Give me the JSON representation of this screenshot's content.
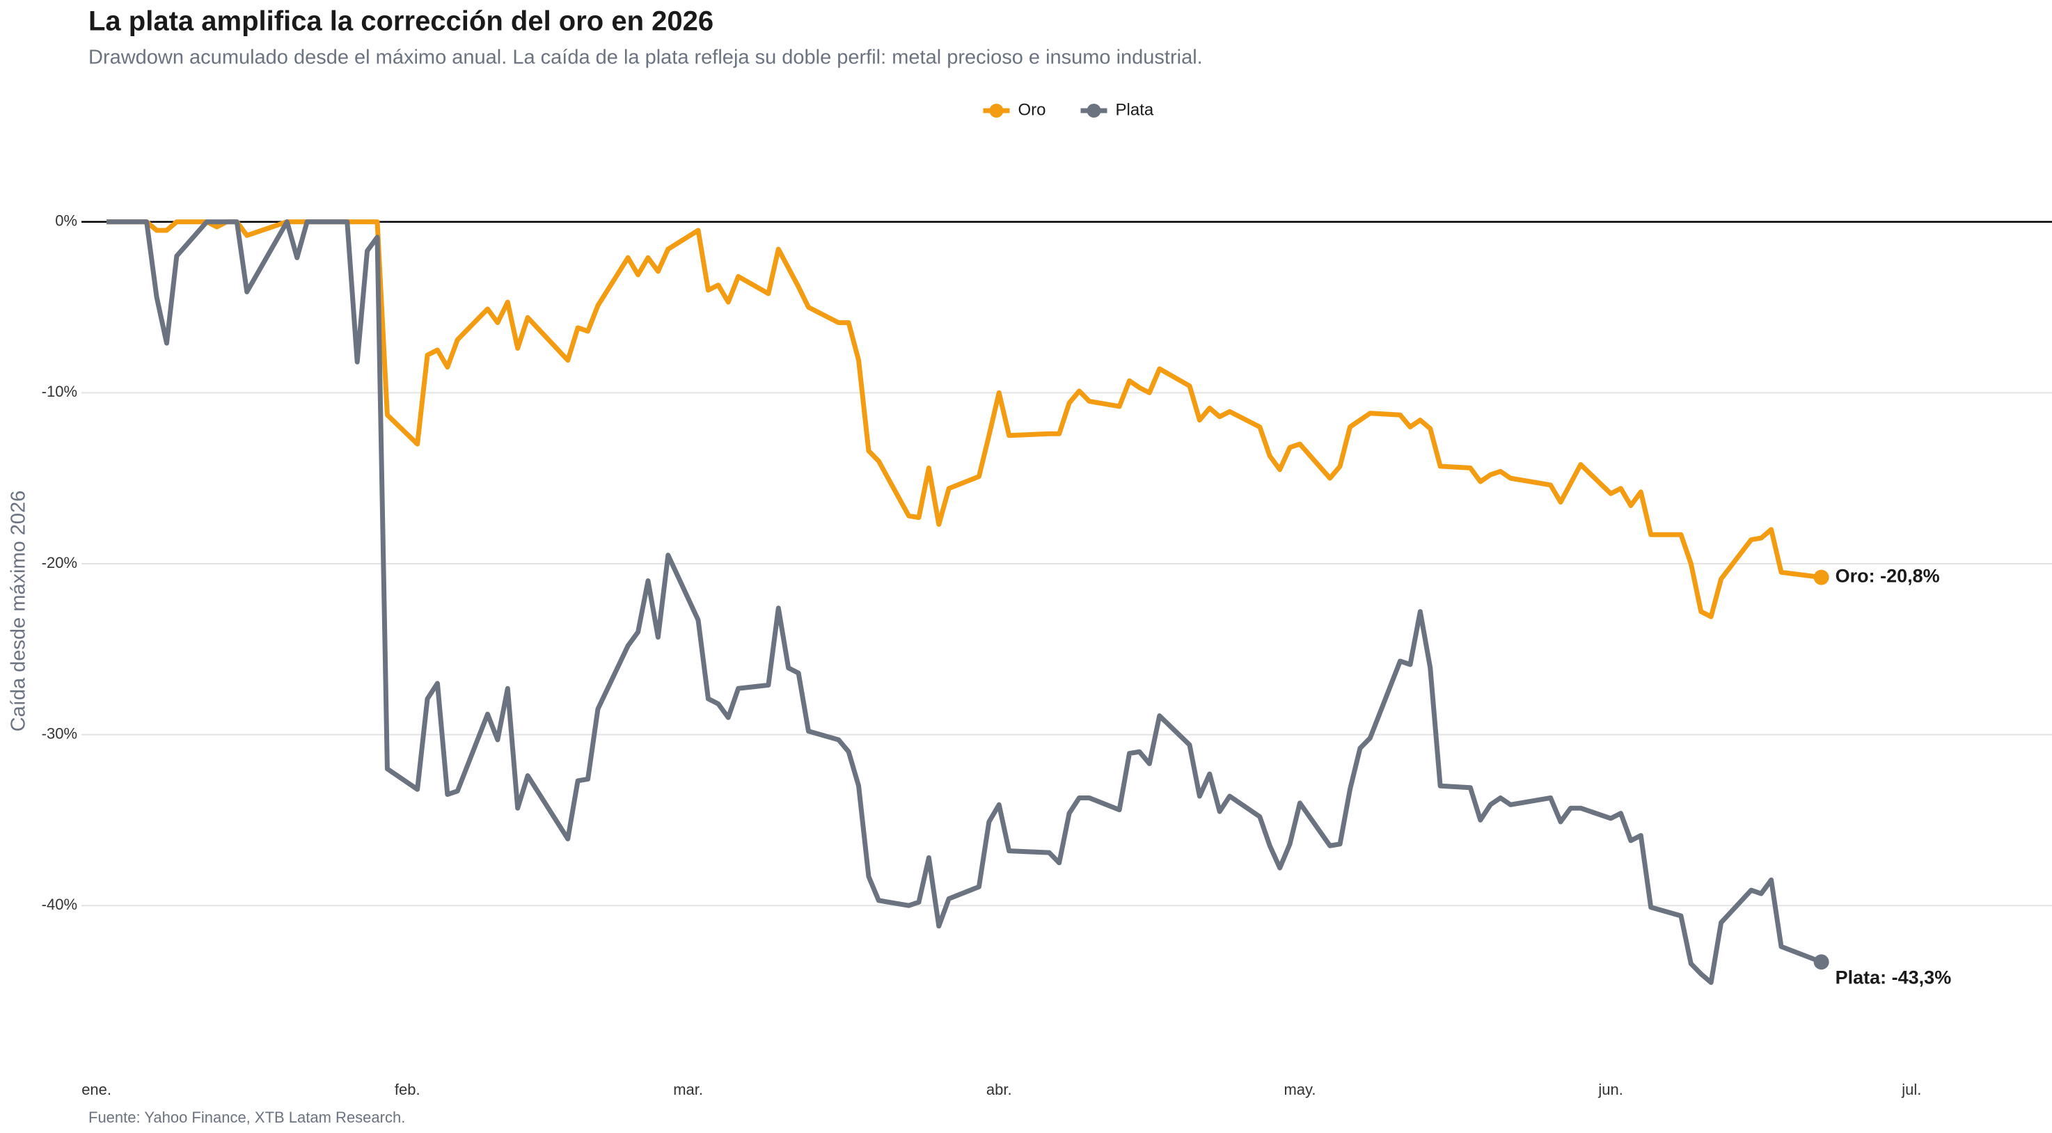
{
  "chart_data": {
    "type": "line",
    "title": "La plata amplifica la corrección del oro en 2026",
    "subtitle": "Drawdown acumulado desde el máximo anual. La caída de la plata refleja su doble perfil: metal precioso e insumo industrial.",
    "y_label": "Caída desde máximo 2026",
    "caption": "Fuente: Yahoo Finance, XTB Latam Research.",
    "legend": "top",
    "grid": true,
    "x": [
      1,
      5,
      6,
      7,
      8,
      11,
      12,
      13,
      14,
      15,
      19,
      20,
      21,
      25,
      26,
      27,
      28,
      29,
      32,
      33,
      34,
      35,
      36,
      39,
      40,
      41,
      42,
      43,
      47,
      48,
      49,
      50,
      53,
      54,
      55,
      56,
      57,
      60,
      61,
      62,
      63,
      64,
      67,
      68,
      69,
      70,
      71,
      74,
      75,
      76,
      77,
      78,
      81,
      82,
      83,
      84,
      85,
      88,
      89,
      90,
      91,
      95,
      96,
      97,
      98,
      99,
      102,
      103,
      104,
      105,
      106,
      109,
      110,
      111,
      112,
      113,
      116,
      117,
      118,
      119,
      120,
      123,
      124,
      125,
      126,
      127,
      130,
      131,
      132,
      133,
      134,
      137,
      138,
      139,
      140,
      141,
      145,
      146,
      147,
      148,
      151,
      152,
      153,
      154,
      155,
      158,
      159,
      160,
      161,
      162,
      165,
      166,
      167,
      168,
      172
    ],
    "series": [
      {
        "name": "Oro",
        "color": "#f39c12",
        "end_label": "Oro: -20,8%",
        "values": [
          0,
          0,
          -0.5,
          -0.5,
          0,
          0,
          -0.3,
          0,
          0,
          -0.8,
          0,
          0,
          0,
          0,
          0,
          0,
          0,
          -11.3,
          -13,
          -7.8,
          -7.5,
          -8.5,
          -6.9,
          -5.1,
          -5.9,
          -4.7,
          -7.4,
          -5.6,
          -8.1,
          -6.2,
          -6.4,
          -4.9,
          -2.1,
          -3.1,
          -2.1,
          -2.9,
          -1.6,
          -0.5,
          -4,
          -3.7,
          -4.7,
          -3.2,
          -4.2,
          -1.6,
          -2.7,
          -3.8,
          -5,
          -5.9,
          -5.9,
          -8.1,
          -13.4,
          -14,
          -17.2,
          -17.3,
          -14.4,
          -17.7,
          -15.6,
          -14.9,
          -12.5,
          -10,
          -12.5,
          -12.4,
          -12.4,
          -10.6,
          -9.9,
          -10.5,
          -10.8,
          -9.3,
          -9.7,
          -10,
          -8.6,
          -9.6,
          -11.6,
          -10.9,
          -11.4,
          -11.1,
          -12,
          -13.7,
          -14.5,
          -13.2,
          -13,
          -15,
          -14.3,
          -12,
          -11.6,
          -11.2,
          -11.3,
          -12,
          -11.6,
          -12.1,
          -14.3,
          -14.4,
          -15.2,
          -14.8,
          -14.6,
          -15,
          -15.4,
          -16.4,
          -15.3,
          -14.2,
          -15.9,
          -15.6,
          -16.6,
          -15.8,
          -18.3,
          -18.3,
          -20,
          -22.8,
          -23.1,
          -20.9,
          -18.6,
          -18.5,
          -18,
          -20.5,
          -20.8
        ]
      },
      {
        "name": "Plata",
        "color": "#6b7280",
        "end_label": "Plata: -43,3%",
        "values": [
          0,
          0,
          -4.4,
          -7.1,
          -2,
          0,
          0,
          0,
          0,
          -4.1,
          0,
          -2.1,
          0,
          0,
          -8.2,
          -1.7,
          -0.9,
          -32,
          -33.2,
          -27.9,
          -27,
          -33.5,
          -33.3,
          -28.8,
          -30.3,
          -27.3,
          -34.3,
          -32.4,
          -36.1,
          -32.7,
          -32.6,
          -28.5,
          -24.8,
          -24,
          -21,
          -24.3,
          -19.5,
          -23.3,
          -27.9,
          -28.2,
          -29,
          -27.3,
          -27.1,
          -22.6,
          -26.1,
          -26.4,
          -29.8,
          -30.3,
          -31,
          -33,
          -38.3,
          -39.7,
          -40,
          -39.8,
          -37.2,
          -41.2,
          -39.6,
          -38.9,
          -35.1,
          -34.1,
          -36.8,
          -36.9,
          -37.5,
          -34.6,
          -33.7,
          -33.7,
          -34.4,
          -31.1,
          -31,
          -31.7,
          -28.9,
          -30.6,
          -33.6,
          -32.3,
          -34.5,
          -33.6,
          -34.8,
          -36.5,
          -37.8,
          -36.4,
          -34,
          -36.5,
          -36.4,
          -33.2,
          -30.8,
          -30.2,
          -25.7,
          -25.9,
          -22.8,
          -26.1,
          -33,
          -33.1,
          -35,
          -34.1,
          -33.7,
          -34.1,
          -33.7,
          -35.1,
          -34.3,
          -34.3,
          -34.9,
          -34.6,
          -36.2,
          -35.9,
          -40.1,
          -40.6,
          -43.4,
          -44,
          -44.5,
          -41,
          -39.1,
          -39.3,
          -38.5,
          -42.4,
          -43.3
        ]
      }
    ],
    "xlim": [
      -1.5,
      195
    ],
    "xticks": [
      {
        "value": 0,
        "label": "ene."
      },
      {
        "value": 31,
        "label": "feb."
      },
      {
        "value": 59,
        "label": "mar."
      },
      {
        "value": 90,
        "label": "abr."
      },
      {
        "value": 120,
        "label": "may."
      },
      {
        "value": 151,
        "label": "jun."
      },
      {
        "value": 181,
        "label": "jul."
      }
    ],
    "ylim": [
      -48.5,
      3
    ],
    "yticks": [
      {
        "value": -40,
        "label": "-40%"
      },
      {
        "value": -30,
        "label": "-30%"
      },
      {
        "value": -20,
        "label": "-20%"
      },
      {
        "value": -10,
        "label": "-10%"
      },
      {
        "value": 0,
        "label": "0%"
      }
    ]
  }
}
